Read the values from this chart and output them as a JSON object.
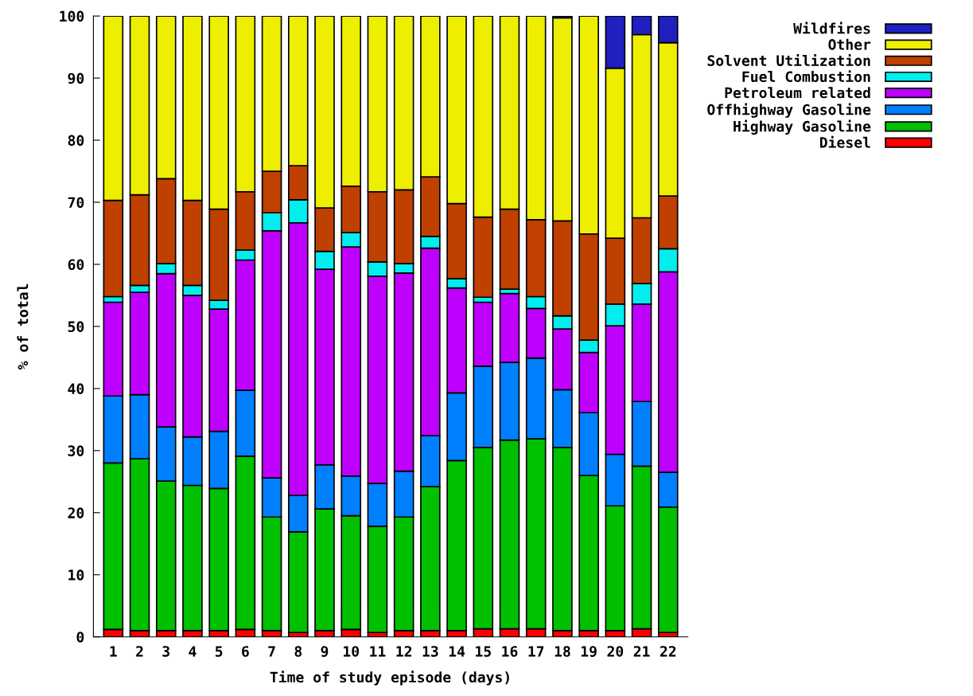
{
  "chart_data": {
    "type": "bar",
    "stacked": true,
    "xlabel": "Time of study episode (days)",
    "ylabel": "% of total",
    "categories": [
      "1",
      "2",
      "3",
      "4",
      "5",
      "6",
      "7",
      "8",
      "9",
      "10",
      "11",
      "12",
      "13",
      "14",
      "15",
      "16",
      "17",
      "18",
      "19",
      "20",
      "21",
      "22"
    ],
    "series": [
      {
        "name": "Diesel",
        "color": "#ff0000",
        "values": [
          1.2,
          1,
          1,
          1,
          1,
          1.2,
          1,
          0.7,
          1,
          1.2,
          0.7,
          1,
          1,
          1,
          1.3,
          1.3,
          1.3,
          1,
          1,
          1,
          1.3,
          0.7
        ]
      },
      {
        "name": "Highway Gasoline",
        "color": "#00c000",
        "values": [
          26.8,
          27.7,
          24.1,
          23.4,
          22.9,
          27.9,
          18.3,
          16.2,
          19.6,
          18.3,
          17.1,
          18.3,
          23.2,
          27.4,
          29.2,
          30.4,
          30.6,
          29.5,
          25,
          20.1,
          26.2,
          20.2
        ]
      },
      {
        "name": "Offhighway Gasoline",
        "color": "#0080ff",
        "values": [
          10.8,
          10.3,
          8.7,
          7.8,
          9.2,
          10.6,
          6.3,
          5.9,
          7.1,
          6.4,
          6.9,
          7.4,
          8.2,
          10.9,
          13.1,
          12.5,
          13,
          9.3,
          10.1,
          8.3,
          10.4,
          5.6
        ]
      },
      {
        "name": "Petroleum related",
        "color": "#c000ff",
        "values": [
          15.1,
          16.5,
          24.7,
          22.8,
          19.7,
          21,
          39.8,
          43.9,
          31.5,
          36.9,
          33.4,
          31.9,
          30.2,
          16.9,
          10.3,
          11.1,
          8,
          9.8,
          9.7,
          20.7,
          15.7,
          32.3
        ]
      },
      {
        "name": "Fuel Combustion",
        "color": "#00eeee",
        "values": [
          0.9,
          1.1,
          1.6,
          1.6,
          1.4,
          1.6,
          2.9,
          3.7,
          2.9,
          2.3,
          2.3,
          1.5,
          1.9,
          1.5,
          0.8,
          0.7,
          1.9,
          2.1,
          2,
          3.5,
          3.3,
          3.7
        ]
      },
      {
        "name": "Solvent Utilization",
        "color": "#c04000",
        "values": [
          15.5,
          14.6,
          13.7,
          13.7,
          14.7,
          9.4,
          6.7,
          5.5,
          7,
          7.5,
          11.3,
          11.9,
          9.6,
          12.1,
          12.9,
          12.9,
          12.4,
          15.3,
          17.1,
          10.6,
          10.6,
          8.5
        ]
      },
      {
        "name": "Other",
        "color": "#eeee00",
        "values": [
          29.7,
          28.8,
          26.2,
          29.7,
          31.1,
          28.3,
          25,
          24.1,
          30.9,
          27.4,
          28.3,
          28,
          25.9,
          30.2,
          32.4,
          31.1,
          32.8,
          32.7,
          35.1,
          27.4,
          29.5,
          24.7
        ]
      },
      {
        "name": "Wildfires",
        "color": "#2020c0",
        "values": [
          null,
          null,
          null,
          null,
          null,
          null,
          null,
          null,
          null,
          null,
          null,
          null,
          null,
          null,
          null,
          null,
          null,
          0.3,
          null,
          8.4,
          3,
          4.3
        ]
      }
    ],
    "ylim": [
      0,
      100
    ],
    "yticks": [
      0,
      10,
      20,
      30,
      40,
      50,
      60,
      70,
      80,
      90,
      100
    ],
    "grid": false,
    "legend": "top right"
  }
}
